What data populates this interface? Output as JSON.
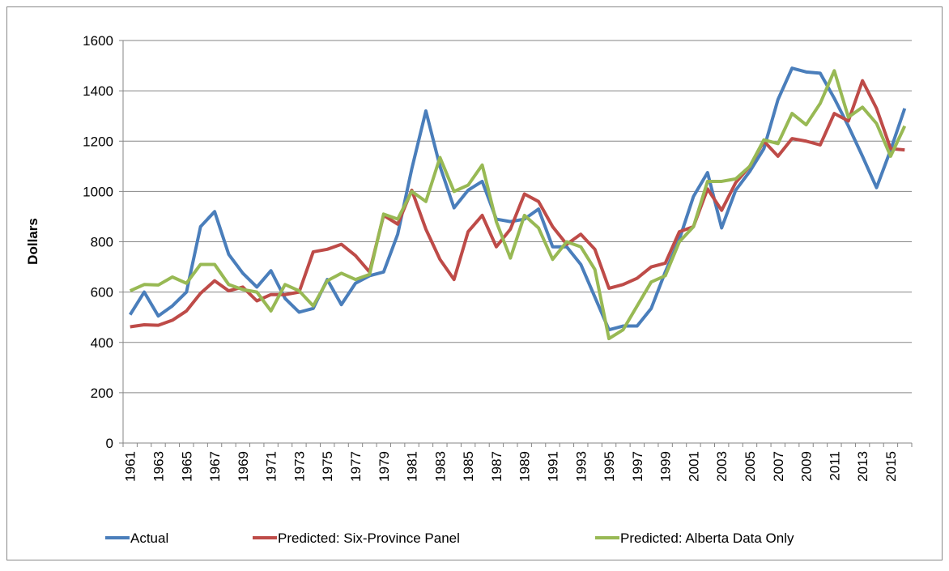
{
  "chart_data": {
    "type": "line",
    "y_label": "Dollars",
    "categories": [
      "1961",
      null,
      "1963",
      null,
      "1965",
      null,
      "1967",
      null,
      "1969",
      null,
      "1971",
      null,
      "1973",
      null,
      "1975",
      null,
      "1977",
      null,
      "1979",
      null,
      "1981",
      null,
      "1983",
      null,
      "1985",
      null,
      "1987",
      null,
      "1989",
      null,
      "1991",
      null,
      "1993",
      null,
      "1995",
      null,
      "1997",
      null,
      "1999",
      null,
      "2001",
      null,
      "2003",
      null,
      "2005",
      null,
      "2007",
      null,
      "2009",
      null,
      "2011",
      null,
      "2013",
      null,
      "2015",
      null
    ],
    "series": [
      {
        "name": "Actual",
        "color": "#4a7ebb",
        "values": [
          510,
          600,
          505,
          545,
          600,
          860,
          920,
          750,
          675,
          620,
          685,
          575,
          520,
          535,
          650,
          550,
          635,
          665,
          680,
          830,
          1090,
          1320,
          1100,
          935,
          1005,
          1040,
          890,
          880,
          890,
          930,
          780,
          780,
          710,
          580,
          450,
          465,
          465,
          535,
          680,
          810,
          980,
          1075,
          855,
          1005,
          1080,
          1170,
          1365,
          1490,
          1475,
          1470,
          1370,
          1260,
          1140,
          1015,
          1165,
          1330
        ]
      },
      {
        "name": "Predicted: Six-Province Panel",
        "color": "#be4b48",
        "values": [
          462,
          470,
          468,
          488,
          525,
          595,
          645,
          605,
          620,
          565,
          590,
          590,
          600,
          760,
          770,
          790,
          745,
          680,
          905,
          870,
          1005,
          850,
          730,
          650,
          840,
          905,
          780,
          850,
          990,
          960,
          860,
          790,
          830,
          770,
          615,
          630,
          655,
          700,
          715,
          840,
          860,
          1010,
          925,
          1035,
          1100,
          1200,
          1140,
          1210,
          1200,
          1185,
          1310,
          1280,
          1440,
          1330,
          1170,
          1165
        ]
      },
      {
        "name": "Predicted: Alberta Data Only",
        "color": "#98b954",
        "values": [
          605,
          630,
          628,
          660,
          635,
          710,
          710,
          630,
          610,
          600,
          525,
          630,
          605,
          545,
          645,
          675,
          650,
          670,
          910,
          890,
          1000,
          960,
          1135,
          1000,
          1025,
          1105,
          880,
          735,
          905,
          855,
          730,
          800,
          780,
          690,
          415,
          450,
          545,
          640,
          665,
          800,
          860,
          1040,
          1040,
          1050,
          1100,
          1205,
          1190,
          1310,
          1265,
          1350,
          1480,
          1295,
          1335,
          1270,
          1140,
          1260
        ]
      }
    ],
    "ylim": [
      0,
      1600
    ],
    "yticks": [
      0,
      200,
      400,
      600,
      800,
      1000,
      1200,
      1400,
      1600
    ],
    "grid": true,
    "legend": "bottom"
  }
}
